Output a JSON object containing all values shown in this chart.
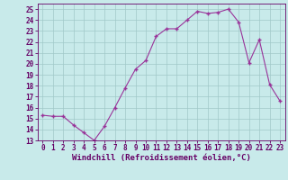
{
  "x": [
    0,
    1,
    2,
    3,
    4,
    5,
    6,
    7,
    8,
    9,
    10,
    11,
    12,
    13,
    14,
    15,
    16,
    17,
    18,
    19,
    20,
    21,
    22,
    23
  ],
  "y": [
    15.3,
    15.2,
    15.2,
    14.4,
    13.7,
    13.0,
    14.3,
    16.0,
    17.8,
    19.5,
    20.3,
    22.5,
    23.2,
    23.2,
    24.0,
    24.8,
    24.6,
    24.7,
    25.0,
    23.8,
    20.1,
    22.2,
    18.1,
    16.6
  ],
  "line_color": "#993399",
  "marker_color": "#993399",
  "bg_color": "#c8eaea",
  "grid_color": "#a0c8c8",
  "xlabel": "Windchill (Refroidissement éolien,°C)",
  "xlim": [
    -0.5,
    23.5
  ],
  "ylim": [
    13,
    25.5
  ],
  "yticks": [
    13,
    14,
    15,
    16,
    17,
    18,
    19,
    20,
    21,
    22,
    23,
    24,
    25
  ],
  "xticks": [
    0,
    1,
    2,
    3,
    4,
    5,
    6,
    7,
    8,
    9,
    10,
    11,
    12,
    13,
    14,
    15,
    16,
    17,
    18,
    19,
    20,
    21,
    22,
    23
  ],
  "tick_label_size": 5.5,
  "xlabel_size": 6.5,
  "label_color": "#660066"
}
